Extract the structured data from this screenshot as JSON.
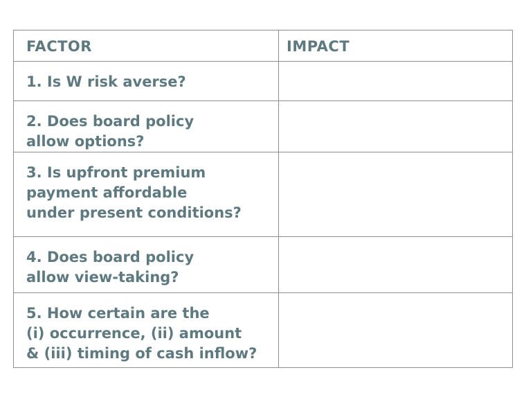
{
  "table": {
    "headers": {
      "factor": "FACTOR",
      "impact": "IMPACT"
    },
    "rows": [
      {
        "factor": "1. Is W risk averse?",
        "impact": ""
      },
      {
        "factor": "2. Does board policy\nallow options?",
        "impact": ""
      },
      {
        "factor": "3. Is upfront premium\npayment affordable\nunder present conditions?",
        "impact": ""
      },
      {
        "factor": "4. Does board policy\nallow view-taking?",
        "impact": ""
      },
      {
        "factor": "5. How certain are the\n(i) occurrence, (ii) amount\n& (iii) timing of cash inflow?",
        "impact": ""
      }
    ]
  },
  "colors": {
    "text": "#5e7a80",
    "border": "#8a8f91",
    "background": "#ffffff"
  }
}
